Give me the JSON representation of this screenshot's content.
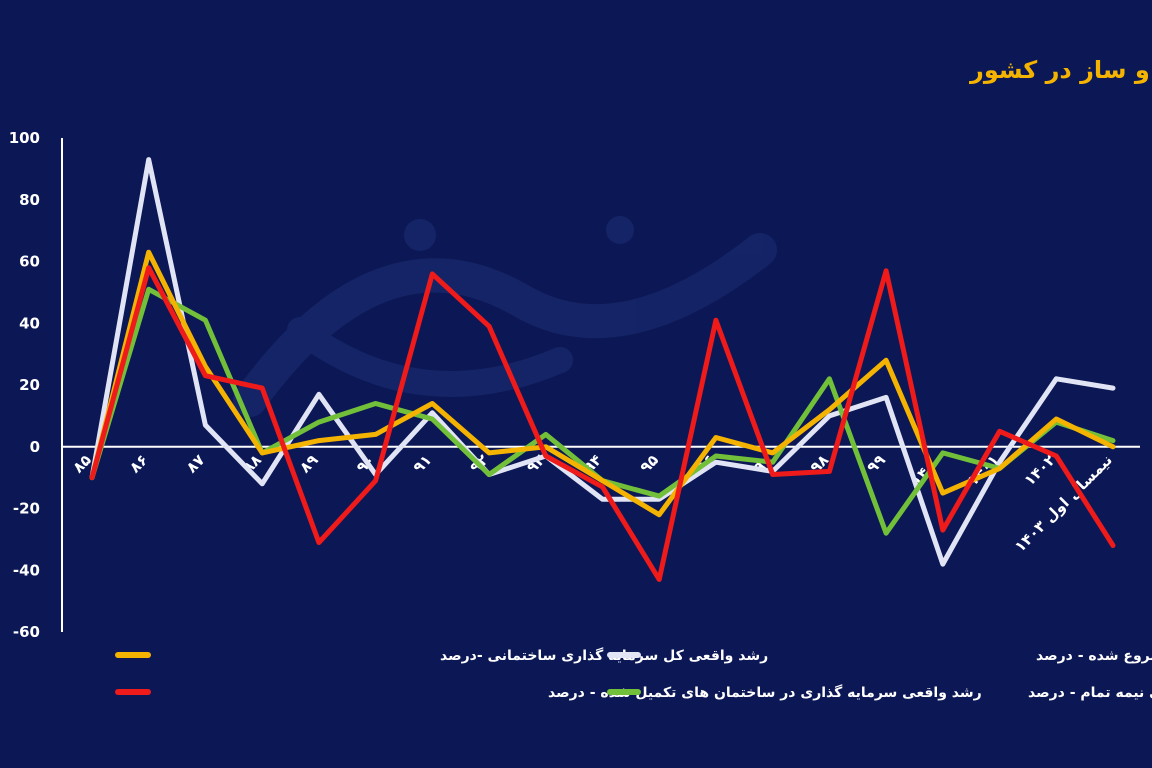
{
  "chart_data": {
    "type": "line",
    "title": "نبض ورود سرمایه به مراحل سه‌گانه تولید ساختمان- بازار ساخت و ساز در کشور",
    "xlabel": "",
    "ylabel": "",
    "ylim": [
      -60,
      100
    ],
    "yticks": [
      "100",
      "80",
      "60",
      "40",
      "20",
      "0",
      "-20",
      "-40",
      "-60"
    ],
    "ytick_values": [
      100,
      80,
      60,
      40,
      20,
      0,
      -20,
      -40,
      -60
    ],
    "categories": [
      "۸۵",
      "۸۶",
      "۸۷",
      "۸۸",
      "۸۹",
      "۹۰",
      "۹۱",
      "۹۲",
      "۹۳",
      "۹۴",
      "۹۵",
      "۹۶",
      "۹۷",
      "۹۸",
      "۹۹",
      "۱۴۰۰",
      "۱۴۰۱",
      "۱۴۰۲",
      "نیمسال اول ۱۴۰۳"
    ],
    "grid": false,
    "legend_position": "bottom",
    "series": [
      {
        "name": "رشد واقعی کل سرمایه گذاری ساختمانی -درصد",
        "color": "#f5b301",
        "values": [
          -10,
          63,
          26,
          -2,
          2,
          4,
          14,
          -2,
          0,
          -11,
          -22,
          3,
          -2,
          12,
          28,
          -15,
          -7,
          9,
          0
        ]
      },
      {
        "name": "رشد واقعی سرمایه گذاری در ساختمان های شروع شده - درصد",
        "color": "#e0e4f5",
        "values": [
          -10,
          93,
          7,
          -12,
          17,
          -9,
          11,
          -9,
          -3,
          -17,
          -17,
          -5,
          -8,
          10,
          16,
          -38,
          -5,
          22,
          19
        ]
      },
      {
        "name": "رشد واقعی سرمایه گذاری در ساختمان های تکمیل شده - درصد",
        "color": "#ef1b1b",
        "values": [
          -10,
          58,
          23,
          19,
          -31,
          -11,
          56,
          39,
          -3,
          -13,
          -43,
          41,
          -9,
          -8,
          57,
          -27,
          5,
          -3,
          -32
        ]
      },
      {
        "name": "رشد واقعی سرمایه گذاری در ساختمان های نیمه تمام - درصد",
        "color": "#72c03a",
        "values": [
          -10,
          51,
          41,
          -2,
          8,
          14,
          9,
          -9,
          4,
          -11,
          -16,
          -3,
          -5,
          22,
          -28,
          -2,
          -7,
          8,
          2
        ]
      }
    ]
  }
}
